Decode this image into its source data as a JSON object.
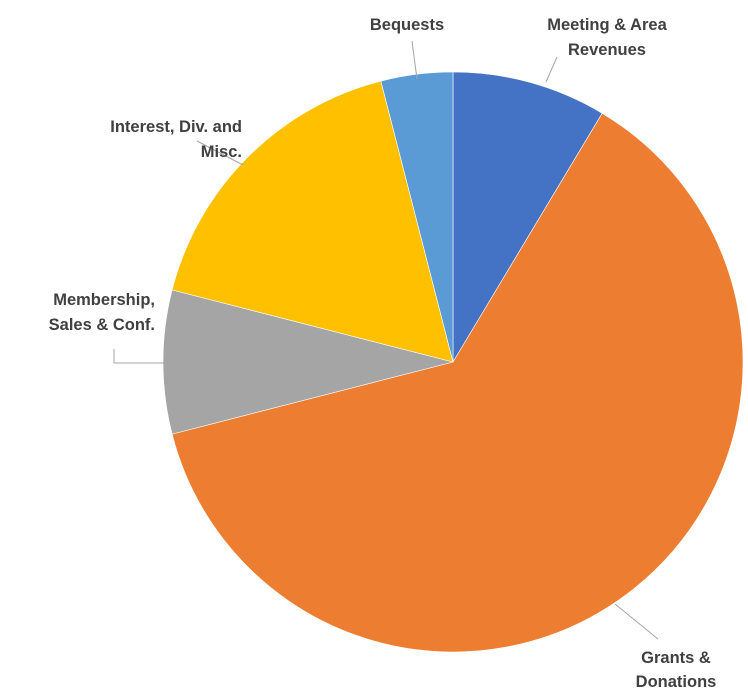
{
  "chart_data": {
    "type": "pie",
    "title": "",
    "start_angle_deg": 0,
    "direction": "clockwise",
    "slices": [
      {
        "label_lines": [
          "Meeting & Area",
          "Revenues"
        ],
        "value": 8.6,
        "color": "#4472C4"
      },
      {
        "label_lines": [
          "Grants &",
          "Donations"
        ],
        "value": 62.4,
        "color": "#ED7D31"
      },
      {
        "label_lines": [
          "Membership,",
          "Sales & Conf."
        ],
        "value": 8.0,
        "color": "#A5A5A5"
      },
      {
        "label_lines": [
          "Interest, Div. and",
          "Misc."
        ],
        "value": 17.0,
        "color": "#FFC000"
      },
      {
        "label_lines": [
          "Bequests"
        ],
        "value": 4.0,
        "color": "#5B9BD5"
      }
    ],
    "legend": "none",
    "data_labels": "category name, outside with leader lines"
  }
}
